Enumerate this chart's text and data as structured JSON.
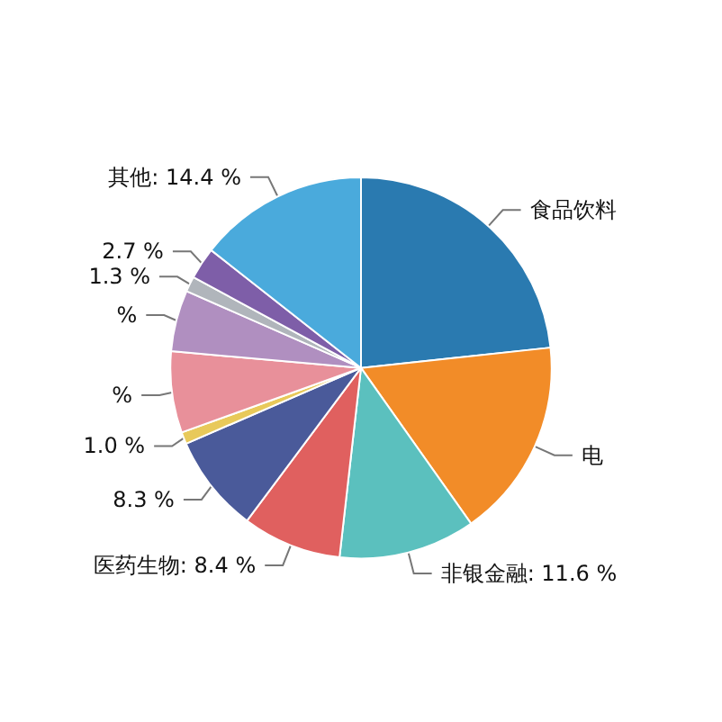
{
  "chart_data": {
    "type": "pie",
    "categories": [
      "食品饮料",
      "电",
      "非银金融",
      "医药生物",
      null,
      null,
      null,
      null,
      null,
      null,
      "其他"
    ],
    "values": [
      23.3,
      16.9,
      11.6,
      8.4,
      8.3,
      1.0,
      6.9,
      5.2,
      1.3,
      2.7,
      14.4
    ],
    "value_labels": [
      null,
      null,
      "11.6 %",
      "8.4 %",
      "8.3 %",
      "1.0 %",
      "%",
      "%",
      "1.3 %",
      "2.7 %",
      "14.4 %"
    ],
    "colors": [
      "#2a7ab0",
      "#f28c28",
      "#5bc0be",
      "#e0605f",
      "#4a5a9a",
      "#e8c95a",
      "#e8909a",
      "#b08fc0",
      "#b0b5bb",
      "#7e5ea8",
      "#4aaadc"
    ],
    "legend": false
  }
}
